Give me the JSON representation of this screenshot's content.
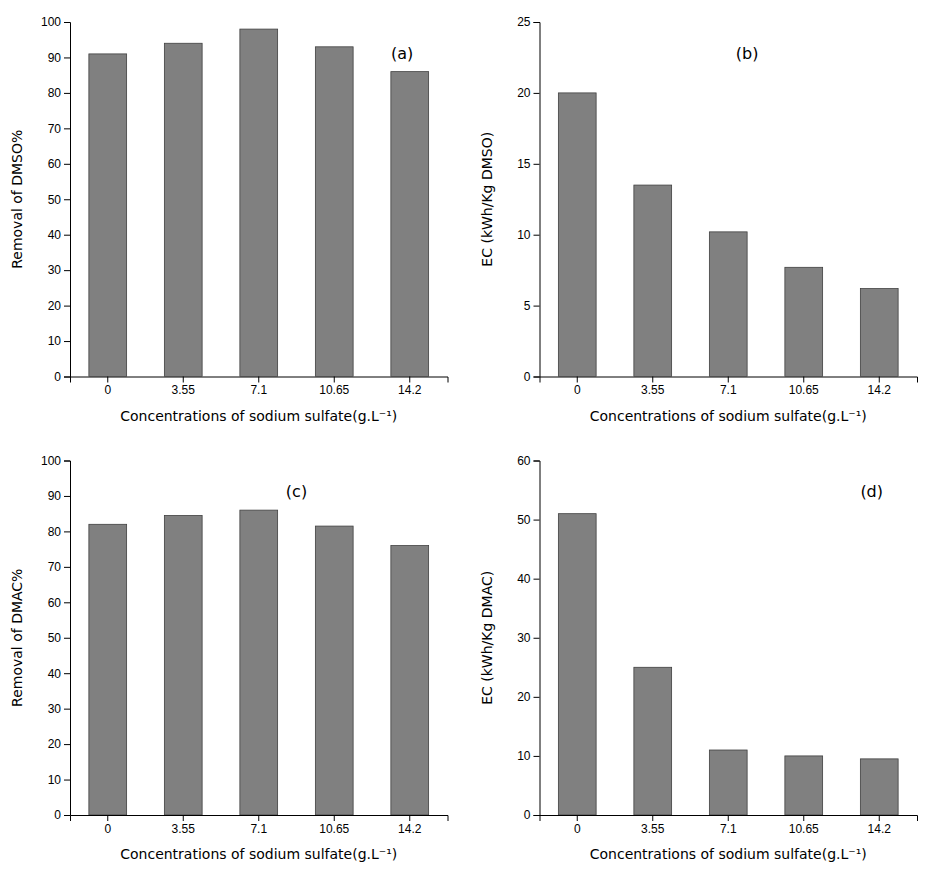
{
  "chart_data": [
    {
      "type": "bar",
      "categories": [
        "0",
        "3.55",
        "7.1",
        "10.65",
        "14.2"
      ],
      "values": [
        91,
        94,
        98,
        93,
        86
      ],
      "color": "#808080",
      "ylabel": "Removal of DMSO%",
      "xlabel": "Concentrations of sodium sulfate(g.L⁻¹)",
      "ylim": [
        0,
        100
      ],
      "yticks": [
        0,
        10,
        20,
        30,
        40,
        50,
        60,
        70,
        80,
        90,
        100
      ],
      "grid": false,
      "annotations": [
        "(a)"
      ]
    },
    {
      "type": "bar",
      "categories": [
        "0",
        "3.55",
        "7.1",
        "10.65",
        "14.2"
      ],
      "values": [
        20.0,
        13.5,
        10.2,
        7.7,
        6.2
      ],
      "color": "#808080",
      "ylabel": "EC (kWh/Kg DMSO)",
      "xlabel": "Concentrations of sodium sulfate(g.L⁻¹)",
      "ylim": [
        0,
        25
      ],
      "yticks": [
        0,
        5,
        10,
        15,
        20,
        25
      ],
      "grid": false,
      "annotations": [
        "(b)"
      ]
    },
    {
      "type": "bar",
      "categories": [
        "0",
        "3.55",
        "7.1",
        "10.65",
        "14.2"
      ],
      "values": [
        82,
        84.5,
        86,
        81.5,
        76
      ],
      "color": "#808080",
      "ylabel": "Removal of DMAC%",
      "xlabel": "Concentrations of sodium sulfate(g.L⁻¹)",
      "ylim": [
        0,
        100
      ],
      "yticks": [
        0,
        10,
        20,
        30,
        40,
        50,
        60,
        70,
        80,
        90,
        100
      ],
      "grid": false,
      "annotations": [
        "(c)"
      ]
    },
    {
      "type": "bar",
      "categories": [
        "0",
        "3.55",
        "7.1",
        "10.65",
        "14.2"
      ],
      "values": [
        51,
        25,
        11,
        10,
        9.5
      ],
      "color": "#808080",
      "ylabel": "EC (kWh/Kg DMAC)",
      "xlabel": "Concentrations of sodium sulfate(g.L⁻¹)",
      "ylim": [
        0,
        60
      ],
      "yticks": [
        0,
        10,
        20,
        30,
        40,
        50,
        60
      ],
      "grid": false,
      "annotations": [
        "(d)"
      ]
    }
  ]
}
